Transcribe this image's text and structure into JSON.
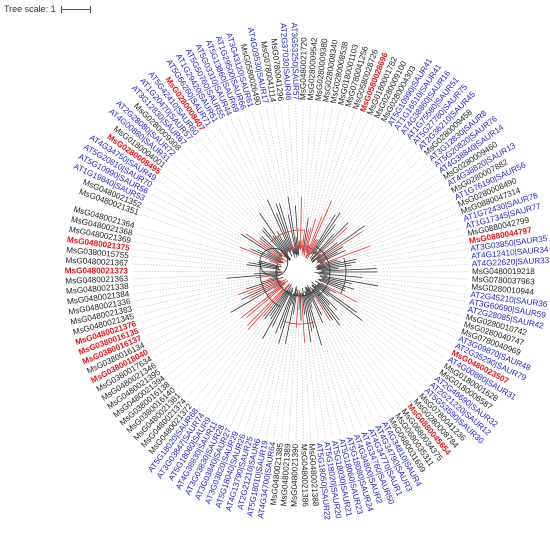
{
  "scale": {
    "label": "Tree scale: 1"
  },
  "colors": {
    "msg": "#222222",
    "msg_highlight": "#e8141a",
    "at": "#2323c8",
    "branch": "#333333",
    "branch_highlight": "#e03030",
    "guide": "#b0b0b0"
  },
  "leaves": [
    {
      "label": "MsG0480021351",
      "group": "msg"
    },
    {
      "label": "MsG0480021352",
      "group": "msg"
    },
    {
      "label": "AT1G19840|SAUR53",
      "group": "at"
    },
    {
      "label": "AT5G10990|SAUR56",
      "group": "at"
    },
    {
      "label": "AT5G20810|SAUR70",
      "group": "at"
    },
    {
      "label": "AT4G34750|SAUR49",
      "group": "at"
    },
    {
      "label": "MsG0280008495",
      "group": "msg_highlight"
    },
    {
      "label": "MsG0180004001",
      "group": "msg"
    },
    {
      "label": "AT4G00880|SAUR31",
      "group": "at"
    },
    {
      "label": "AT2G28080|SAUR72",
      "group": "at"
    },
    {
      "label": "MsG0280009308",
      "group": "msg"
    },
    {
      "label": "AT3G12830|SAUR67",
      "group": "at"
    },
    {
      "label": "AT1G20470|SAUR57",
      "group": "at"
    },
    {
      "label": "AT5G42410|SAUR60",
      "group": "at"
    },
    {
      "label": "MsG0280008407",
      "group": "msg_highlight"
    },
    {
      "label": "AT5G66260|SAUR71",
      "group": "at"
    },
    {
      "label": "AT1G29420|SAUR51",
      "group": "at"
    },
    {
      "label": "AT5G50760|SAUR55",
      "group": "at"
    },
    {
      "label": "AT5G03310|SAUR44",
      "group": "at"
    },
    {
      "label": "AT5G13860|SAUR69",
      "group": "at"
    },
    {
      "label": "AT1G29500|SAUR66",
      "group": "at"
    },
    {
      "label": "AT3G43120|SAUR61",
      "group": "at"
    },
    {
      "label": "MsG0580026490",
      "group": "msg"
    },
    {
      "label": "AT4G09530|SAUR17",
      "group": "at"
    },
    {
      "label": "MsG0780041114",
      "group": "msg"
    },
    {
      "label": "MsG0780041296",
      "group": "msg"
    },
    {
      "label": "AT2G37030|SAUR46",
      "group": "at"
    },
    {
      "label": "AT3G53250|SAUR57",
      "group": "at"
    },
    {
      "label": "MsG0480021720",
      "group": "msg"
    },
    {
      "label": "MsG0280009542",
      "group": "msg"
    },
    {
      "label": "MsG0280009380",
      "group": "msg"
    },
    {
      "label": "MsG0280008340",
      "group": "msg"
    },
    {
      "label": "MsG0280008538",
      "group": "msg"
    },
    {
      "label": "MsG0180001103",
      "group": "msg"
    },
    {
      "label": "MsG0780041256",
      "group": "msg"
    },
    {
      "label": "MsG0580028726",
      "group": "msg"
    },
    {
      "label": "MsG0580028696",
      "group": "msg_highlight"
    },
    {
      "label": "MsG0180001782",
      "group": "msg"
    },
    {
      "label": "MsG0280009100",
      "group": "msg"
    },
    {
      "label": "MsG0280004303",
      "group": "msg"
    },
    {
      "label": "AT5G10990|SAUR41",
      "group": "at"
    },
    {
      "label": "AT1G16510|SAUR41",
      "group": "at"
    },
    {
      "label": "AT4G38860|SAUR16",
      "group": "at"
    },
    {
      "label": "AT1G75580|SAUR51",
      "group": "at"
    },
    {
      "label": "AT5G27780|SAUR75",
      "group": "at"
    },
    {
      "label": "AT2G36210|SAUR45",
      "group": "at"
    },
    {
      "label": "MsG0280009458",
      "group": "msg"
    },
    {
      "label": "AT3G12830|SAUR8",
      "group": "at"
    },
    {
      "label": "AT5G20820|SAUR76",
      "group": "at"
    },
    {
      "label": "AT4G38840|SAUR14",
      "group": "at"
    },
    {
      "label": "MsG0280009460",
      "group": "msg"
    },
    {
      "label": "AT4G38820|SAUR13",
      "group": "at"
    },
    {
      "label": "MsG0280007882",
      "group": "msg"
    },
    {
      "label": "AT1G76190|SAUR56",
      "group": "at"
    },
    {
      "label": "MsG0280008490",
      "group": "msg"
    },
    {
      "label": "MsG0880047314",
      "group": "msg"
    },
    {
      "label": "AT1G72430|SAUR78",
      "group": "at"
    },
    {
      "label": "AT1G17345|SAUR77",
      "group": "at"
    },
    {
      "label": "MsG0880042799",
      "group": "msg"
    },
    {
      "label": "MsG0880044797",
      "group": "msg_highlight"
    },
    {
      "label": "AT3G03850|SAUR35",
      "group": "at"
    },
    {
      "label": "AT4G12410|SAUR34",
      "group": "at"
    },
    {
      "label": "AT4G22620|SAUR33",
      "group": "at"
    },
    {
      "label": "MsG0480019218",
      "group": "msg"
    },
    {
      "label": "MsG0780037963",
      "group": "msg"
    },
    {
      "label": "MsG0280010944",
      "group": "msg"
    },
    {
      "label": "AT2G45210|SAUR36",
      "group": "at"
    },
    {
      "label": "AT3G60690|SAUR59",
      "group": "at"
    },
    {
      "label": "AT2G28085|SAUR42",
      "group": "at"
    },
    {
      "label": "MsG0280010742",
      "group": "msg"
    },
    {
      "label": "MsG0280040747",
      "group": "msg"
    },
    {
      "label": "MsG0780040969",
      "group": "msg"
    },
    {
      "label": "AT3G09870|SAUR48",
      "group": "at"
    },
    {
      "label": "AT2G35290|SAUR79",
      "group": "at"
    },
    {
      "label": "MsG0480023507",
      "group": "msg_highlight"
    },
    {
      "label": "AT4G00880|SAUR31",
      "group": "at"
    },
    {
      "label": "MsG0180001628",
      "group": "msg"
    },
    {
      "label": "MsG0180006587",
      "group": "msg"
    },
    {
      "label": "AT2G46690|SAUR32",
      "group": "at"
    },
    {
      "label": "AT2G21220|SAUR12",
      "group": "at"
    },
    {
      "label": "AT5G53590|SAUR30",
      "group": "at"
    },
    {
      "label": "MsG0780041236",
      "group": "msg"
    },
    {
      "label": "MsG0280008784",
      "group": "msg"
    },
    {
      "label": "MsG0880045654",
      "group": "msg_highlight"
    },
    {
      "label": "MsG0680034375",
      "group": "msg"
    },
    {
      "label": "MsG0680035311",
      "group": "msg"
    },
    {
      "label": "MsG0680031699",
      "group": "msg"
    },
    {
      "label": "AT4G34810|SAUR4",
      "group": "at"
    },
    {
      "label": "AT4G34790|SAUR3",
      "group": "at"
    },
    {
      "label": "AT4G34770|SAUR1",
      "group": "at"
    },
    {
      "label": "AT4G34760|SAUR50",
      "group": "at"
    },
    {
      "label": "AT4G34800|SAUR2",
      "group": "at"
    },
    {
      "label": "AT5G18080|SAUR24",
      "group": "at"
    },
    {
      "label": "AT5G18060|SAUR23",
      "group": "at"
    },
    {
      "label": "AT5G18030|SAUR21",
      "group": "at"
    },
    {
      "label": "AT5G18020|SAUR20",
      "group": "at"
    },
    {
      "label": "AT5G18050|SAUR22",
      "group": "at"
    },
    {
      "label": "MsG0480021388",
      "group": "msg"
    },
    {
      "label": "MsG0480021386",
      "group": "msg"
    },
    {
      "label": "MsG0480021390",
      "group": "msg"
    },
    {
      "label": "MsG0480021389",
      "group": "msg"
    },
    {
      "label": "MsG0480021385",
      "group": "msg"
    },
    {
      "label": "AT4G34700|SAUR64",
      "group": "at"
    },
    {
      "label": "AT5G18010|SAUR19",
      "group": "at"
    },
    {
      "label": "AT2G21210|SAUR6",
      "group": "at"
    },
    {
      "label": "AT4G13790|SAUR25",
      "group": "at"
    },
    {
      "label": "AT5G18040|SAUR26",
      "group": "at"
    },
    {
      "label": "AT3G03820|SAUR29",
      "group": "at"
    },
    {
      "label": "AT3G03840|SAUR27",
      "group": "at"
    },
    {
      "label": "AT3G03830|SAUR28",
      "group": "at"
    },
    {
      "label": "AT4G38830|SAUR11",
      "group": "at"
    },
    {
      "label": "AT5G18060|SAUR9",
      "group": "at"
    },
    {
      "label": "AT3G03847|SAUR74",
      "group": "at"
    },
    {
      "label": "AT5G18020|SAUR68",
      "group": "at"
    },
    {
      "label": "MsG0480021372",
      "group": "msg"
    },
    {
      "label": "MsG0480021374",
      "group": "msg"
    },
    {
      "label": "MsG0480021381",
      "group": "msg"
    },
    {
      "label": "MsG0380016140",
      "group": "msg"
    },
    {
      "label": "MsG0380016138",
      "group": "msg"
    },
    {
      "label": "MsG0480021394",
      "group": "msg"
    },
    {
      "label": "MsG0480021395",
      "group": "msg"
    },
    {
      "label": "MsG0480021346",
      "group": "msg"
    },
    {
      "label": "MsG0380017634",
      "group": "msg"
    },
    {
      "label": "MsG0380018040",
      "group": "msg_highlight"
    },
    {
      "label": "MsG0380016134",
      "group": "msg"
    },
    {
      "label": "MsG0380016137",
      "group": "msg_highlight"
    },
    {
      "label": "MsG0380016135",
      "group": "msg_highlight"
    },
    {
      "label": "MsG0480021376",
      "group": "msg_highlight"
    },
    {
      "label": "MsG0480021345",
      "group": "msg"
    },
    {
      "label": "MsG0480021383",
      "group": "msg"
    },
    {
      "label": "MsG0480021336",
      "group": "msg"
    },
    {
      "label": "MsG0480021384",
      "group": "msg"
    },
    {
      "label": "MsG0480021338",
      "group": "msg"
    },
    {
      "label": "MsG0480021363",
      "group": "msg"
    },
    {
      "label": "MsG0480021373",
      "group": "msg_highlight"
    },
    {
      "label": "MsG0480021367",
      "group": "msg"
    },
    {
      "label": "MsG0380015755",
      "group": "msg"
    },
    {
      "label": "MsG0480021375",
      "group": "msg_highlight"
    },
    {
      "label": "MsG0480021369",
      "group": "msg"
    },
    {
      "label": "MsG0480021368",
      "group": "msg"
    },
    {
      "label": "MsG0480021364",
      "group": "msg"
    }
  ]
}
